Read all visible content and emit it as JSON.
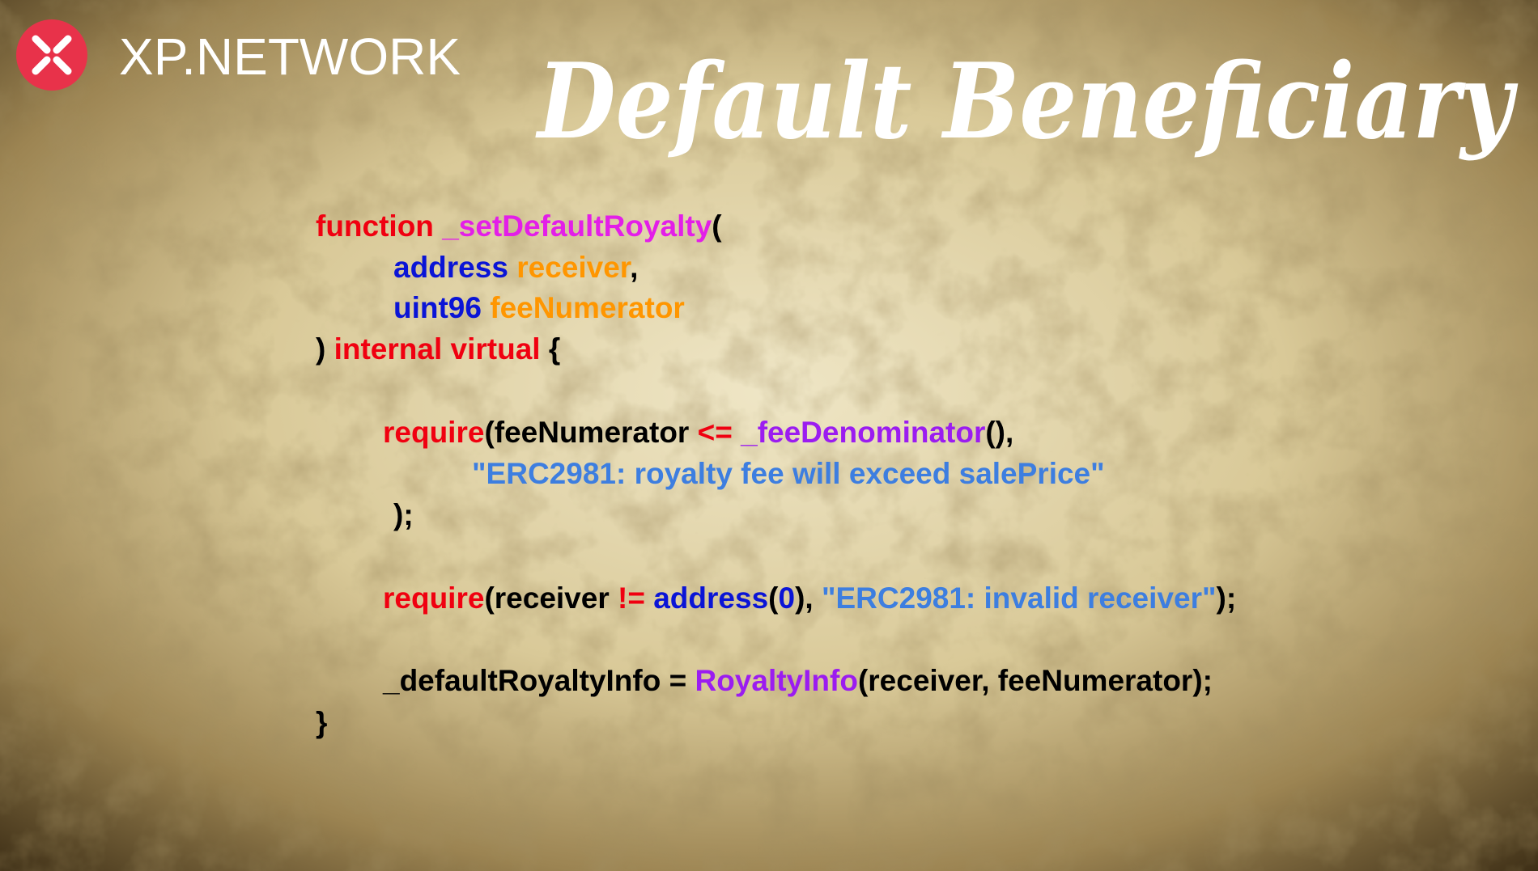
{
  "logo": {
    "text": "XP.NETWORK"
  },
  "title": "Default Beneficiary",
  "code": [
    [
      {
        "text": "function ",
        "color": "#f00010"
      },
      {
        "text": "_setDefaultRoyalty",
        "color": "#e31ee8"
      },
      {
        "text": "(",
        "color": "#000000"
      }
    ],
    [
      {
        "text": "address ",
        "color": "#0a14d6"
      },
      {
        "text": "receiver",
        "color": "#ff9600"
      },
      {
        "text": ",",
        "color": "#000000"
      }
    ],
    [
      {
        "text": "uint96 ",
        "color": "#0a14d6"
      },
      {
        "text": "feeNumerator",
        "color": "#ff9600"
      }
    ],
    [
      {
        "text": ") ",
        "color": "#000000"
      },
      {
        "text": "internal virtual ",
        "color": "#f00010"
      },
      {
        "text": "{",
        "color": "#000000"
      }
    ],
    [
      {
        "text": "require",
        "color": "#f00010"
      },
      {
        "text": "(feeNumerator ",
        "color": "#000000"
      },
      {
        "text": "<= ",
        "color": "#f00010"
      },
      {
        "text": "_feeDenominator",
        "color": "#9b1cf0"
      },
      {
        "text": "(),",
        "color": "#000000"
      }
    ],
    [
      {
        "text": "\"ERC2981: royalty fee will exceed salePrice\"",
        "color": "#3d7ee0"
      }
    ],
    [
      {
        "text": ");",
        "color": "#000000"
      }
    ],
    [
      {
        "text": "require",
        "color": "#f00010"
      },
      {
        "text": "(receiver ",
        "color": "#000000"
      },
      {
        "text": "!= ",
        "color": "#f00010"
      },
      {
        "text": "address",
        "color": "#0a14d6"
      },
      {
        "text": "(",
        "color": "#000000"
      },
      {
        "text": "0",
        "color": "#0a14d6"
      },
      {
        "text": "), ",
        "color": "#000000"
      },
      {
        "text": "\"ERC2981: invalid receiver\"",
        "color": "#3d7ee0"
      },
      {
        "text": ");",
        "color": "#000000"
      }
    ],
    [
      {
        "text": "_defaultRoyaltyInfo = ",
        "color": "#000000"
      },
      {
        "text": "RoyaltyInfo",
        "color": "#9b1cf0"
      },
      {
        "text": "(receiver, feeNumerator);",
        "color": "#000000"
      }
    ],
    [
      {
        "text": "}",
        "color": "#000000"
      }
    ]
  ]
}
